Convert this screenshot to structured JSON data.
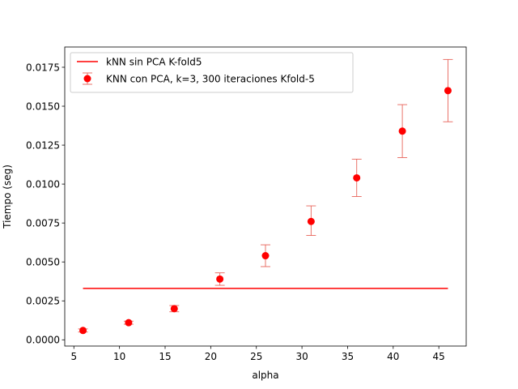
{
  "chart_data": {
    "type": "scatter",
    "title": "",
    "xlabel": "alpha",
    "ylabel": "Tiempo (seg)",
    "xlim": [
      4,
      48
    ],
    "ylim": [
      -0.0004,
      0.0188
    ],
    "xticks": [
      5,
      10,
      15,
      20,
      25,
      30,
      35,
      40,
      45
    ],
    "xtick_labels": [
      "5",
      "10",
      "15",
      "20",
      "25",
      "30",
      "35",
      "40",
      "45"
    ],
    "yticks": [
      0.0,
      0.0025,
      0.005,
      0.0075,
      0.01,
      0.0125,
      0.015,
      0.0175
    ],
    "ytick_labels": [
      "0.0000",
      "0.0025",
      "0.0050",
      "0.0075",
      "0.0100",
      "0.0125",
      "0.0150",
      "0.0175"
    ],
    "grid": false,
    "legend_position": "top-left",
    "series": [
      {
        "name": "kNN sin PCA K-fold5",
        "kind": "line",
        "color": "#ff0000",
        "x": [
          6,
          46
        ],
        "values": [
          0.0033,
          0.0033
        ]
      },
      {
        "name": "KNN con PCA, k=3, 300 iteraciones Kfold-5",
        "kind": "errorbar",
        "color": "#ff0000",
        "x": [
          6,
          11,
          16,
          21,
          26,
          31,
          36,
          41,
          46
        ],
        "values": [
          0.0006,
          0.0011,
          0.002,
          0.0039,
          0.0054,
          0.0076,
          0.0104,
          0.0134,
          0.016
        ],
        "error_low": [
          0.0005,
          0.001,
          0.0018,
          0.0035,
          0.0047,
          0.0067,
          0.0092,
          0.0117,
          0.014
        ],
        "error_high": [
          0.0007,
          0.0012,
          0.0022,
          0.0043,
          0.0061,
          0.0086,
          0.0116,
          0.0151,
          0.018
        ]
      }
    ]
  }
}
